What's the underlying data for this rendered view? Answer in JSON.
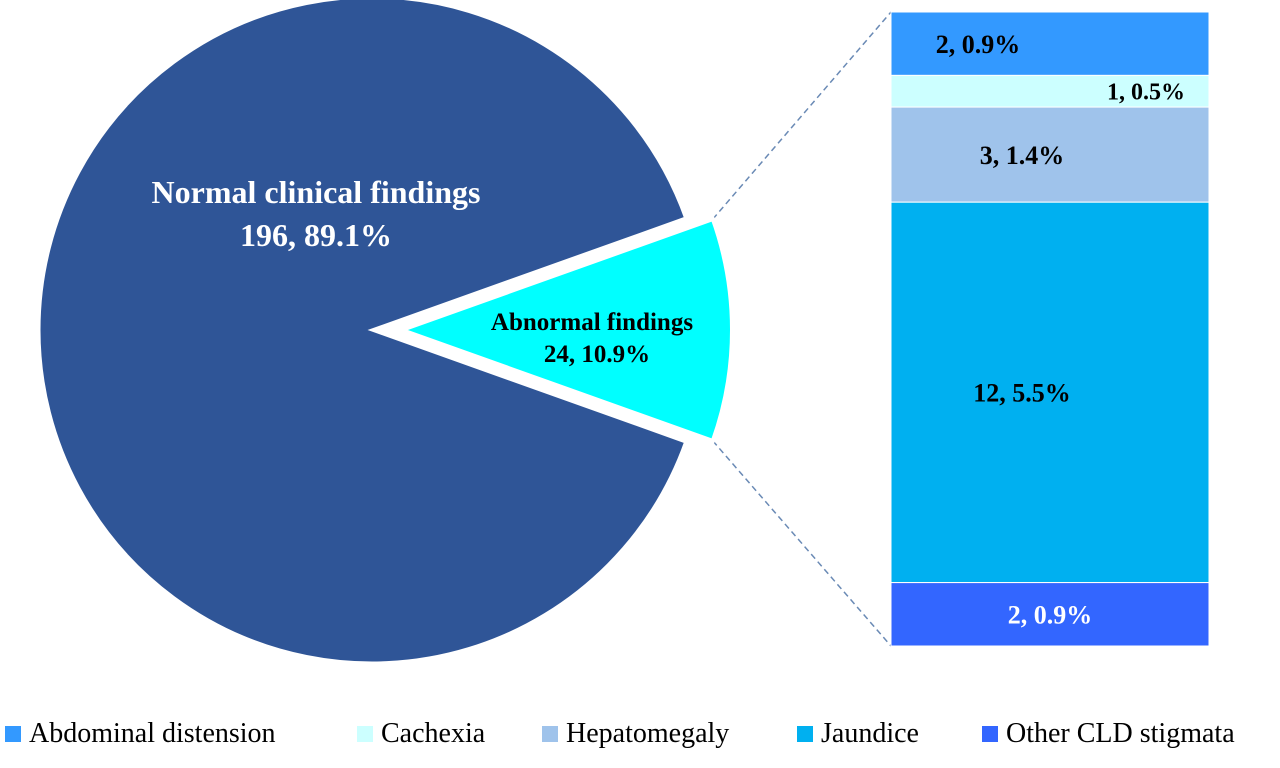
{
  "chart_data": {
    "type": "pie",
    "pie": {
      "slices": [
        {
          "label": "Normal clinical findings",
          "count": 196,
          "percent": 89.1,
          "display": "196, 89.1%",
          "color": "#2f5597"
        },
        {
          "label": "Abnormal findings",
          "count": 24,
          "percent": 10.9,
          "display": "24, 10.9%",
          "color": "#00ffff"
        }
      ]
    },
    "breakdown_bar": {
      "type": "stacked-bar",
      "segments": [
        {
          "category": "Abdominal distension",
          "count": 2,
          "percent": 0.9,
          "display": "2, 0.9%",
          "color": "#3399ff",
          "label_color": "#000000"
        },
        {
          "category": "Cachexia",
          "count": 1,
          "percent": 0.5,
          "display": "1, 0.5%",
          "color": "#ccffff",
          "label_color": "#000000"
        },
        {
          "category": "Hepatomegaly",
          "count": 3,
          "percent": 1.4,
          "display": "3, 1.4%",
          "color": "#9fc3eb",
          "label_color": "#000000"
        },
        {
          "category": "Jaundice",
          "count": 12,
          "percent": 5.5,
          "display": "12, 5.5%",
          "color": "#00b0f0",
          "label_color": "#000000"
        },
        {
          "category": "Other CLD stigmata",
          "count": 2,
          "percent": 0.9,
          "display": "2, 0.9%",
          "color": "#3366ff",
          "label_color": "#ffffff"
        }
      ]
    },
    "legend": {
      "placement": "bottom",
      "items": [
        "Abdominal distension",
        "Cachexia",
        "Hepatomegaly",
        "Jaundice",
        "Other CLD stigmata"
      ]
    }
  }
}
